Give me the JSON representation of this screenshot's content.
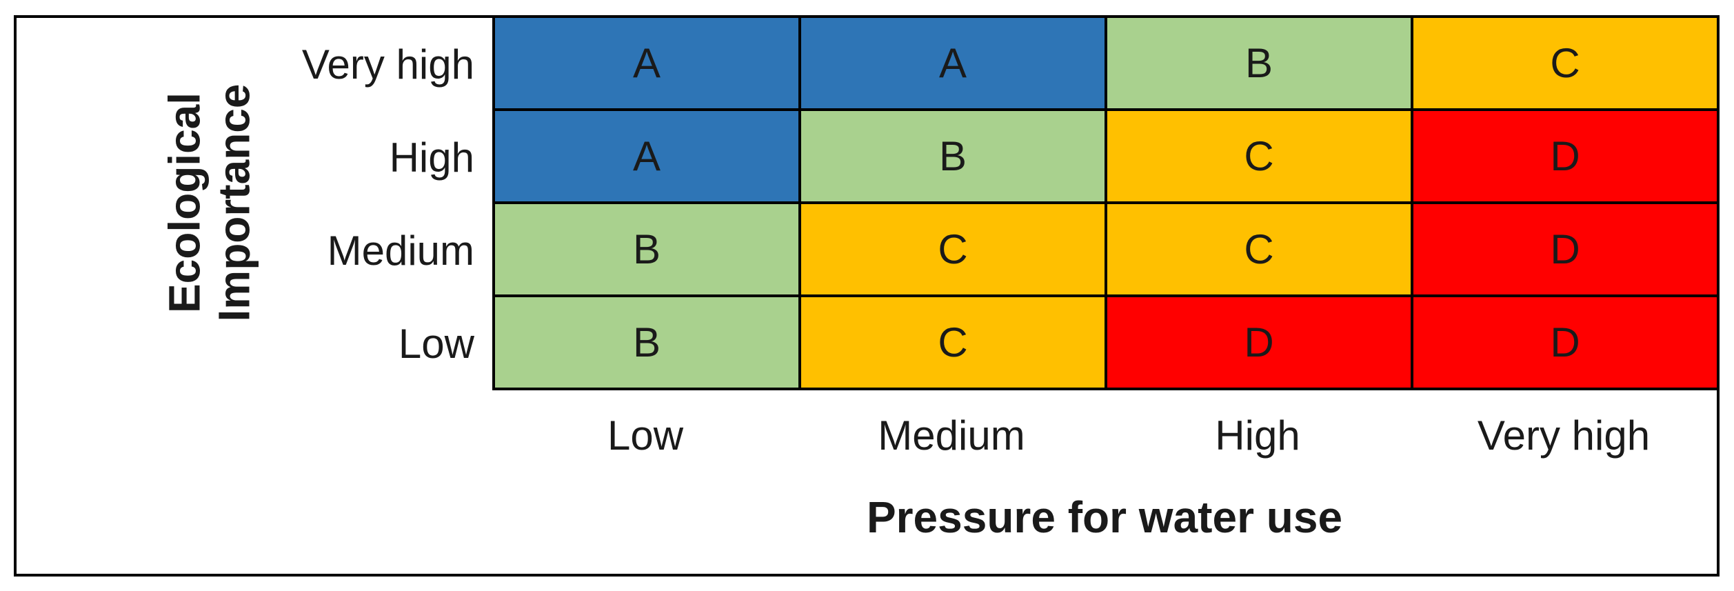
{
  "figure": {
    "y_axis": {
      "title_line1": "Ecological",
      "title_line2": "Importance",
      "row_labels": [
        "Very high",
        "High",
        "Medium",
        "Low"
      ]
    },
    "x_axis": {
      "title": "Pressure for water use",
      "col_labels": [
        "Low",
        "Medium",
        "High",
        "Very high"
      ]
    },
    "matrix": {
      "rows": [
        {
          "cells": [
            {
              "label": "A",
              "color": "#2E75B6"
            },
            {
              "label": "A",
              "color": "#2E75B6"
            },
            {
              "label": "B",
              "color": "#A9D18E"
            },
            {
              "label": "C",
              "color": "#FFC000"
            }
          ]
        },
        {
          "cells": [
            {
              "label": "A",
              "color": "#2E75B6"
            },
            {
              "label": "B",
              "color": "#A9D18E"
            },
            {
              "label": "C",
              "color": "#FFC000"
            },
            {
              "label": "D",
              "color": "#FF0000"
            }
          ]
        },
        {
          "cells": [
            {
              "label": "B",
              "color": "#A9D18E"
            },
            {
              "label": "C",
              "color": "#FFC000"
            },
            {
              "label": "C",
              "color": "#FFC000"
            },
            {
              "label": "D",
              "color": "#FF0000"
            }
          ]
        },
        {
          "cells": [
            {
              "label": "B",
              "color": "#A9D18E"
            },
            {
              "label": "C",
              "color": "#FFC000"
            },
            {
              "label": "D",
              "color": "#FF0000"
            },
            {
              "label": "D",
              "color": "#FF0000"
            }
          ]
        }
      ]
    }
  },
  "palette": {
    "class_A": "#2E75B6",
    "class_B": "#A9D18E",
    "class_C": "#FFC000",
    "class_D": "#FF0000",
    "border": "#000000",
    "background": "#FFFFFF",
    "text": "#1A1A1A"
  },
  "chart_data": {
    "type": "heatmap",
    "title": "",
    "xlabel": "Pressure for water use",
    "ylabel": "Ecological Importance",
    "x_categories": [
      "Low",
      "Medium",
      "High",
      "Very high"
    ],
    "y_categories": [
      "Very high",
      "High",
      "Medium",
      "Low"
    ],
    "values": [
      [
        "A",
        "A",
        "B",
        "C"
      ],
      [
        "A",
        "B",
        "C",
        "D"
      ],
      [
        "B",
        "C",
        "C",
        "D"
      ],
      [
        "B",
        "C",
        "D",
        "D"
      ]
    ],
    "cell_colors": {
      "A": "#2E75B6",
      "B": "#A9D18E",
      "C": "#FFC000",
      "D": "#FF0000"
    },
    "legend": "none",
    "grid": "on"
  }
}
